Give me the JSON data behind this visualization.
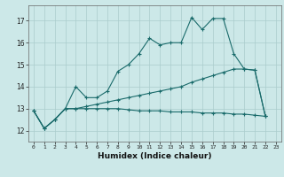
{
  "xlabel": "Humidex (Indice chaleur)",
  "background_color": "#cce8e8",
  "grid_color": "#aacccc",
  "line_color": "#1a6b6b",
  "xlim": [
    -0.5,
    23.5
  ],
  "ylim": [
    11.5,
    17.7
  ],
  "yticks": [
    12,
    13,
    14,
    15,
    16,
    17
  ],
  "xticks": [
    0,
    1,
    2,
    3,
    4,
    5,
    6,
    7,
    8,
    9,
    10,
    11,
    12,
    13,
    14,
    15,
    16,
    17,
    18,
    19,
    20,
    21,
    22,
    23
  ],
  "line1_x": [
    0,
    1,
    2,
    3,
    4,
    5,
    6,
    7,
    8,
    9,
    10,
    11,
    12,
    13,
    14,
    15,
    16,
    17,
    18,
    19,
    20,
    21,
    22
  ],
  "line1_y": [
    12.9,
    12.1,
    12.5,
    13.0,
    14.0,
    13.5,
    13.5,
    13.8,
    14.7,
    15.0,
    15.5,
    16.2,
    15.9,
    16.0,
    16.0,
    17.15,
    16.6,
    17.1,
    17.1,
    15.5,
    14.8,
    14.75,
    12.65
  ],
  "line2_x": [
    0,
    1,
    2,
    3,
    4,
    5,
    6,
    7,
    8,
    9,
    10,
    11,
    12,
    13,
    14,
    15,
    16,
    17,
    18,
    19,
    20,
    21,
    22
  ],
  "line2_y": [
    12.9,
    12.1,
    12.5,
    13.0,
    13.0,
    13.1,
    13.2,
    13.3,
    13.4,
    13.5,
    13.6,
    13.7,
    13.8,
    13.9,
    14.0,
    14.2,
    14.35,
    14.5,
    14.65,
    14.8,
    14.8,
    14.75,
    12.65
  ],
  "line3_x": [
    0,
    1,
    2,
    3,
    4,
    5,
    6,
    7,
    8,
    9,
    10,
    11,
    12,
    13,
    14,
    15,
    16,
    17,
    18,
    19,
    20,
    21,
    22
  ],
  "line3_y": [
    12.9,
    12.1,
    12.5,
    13.0,
    13.0,
    13.0,
    13.0,
    13.0,
    13.0,
    12.95,
    12.9,
    12.9,
    12.9,
    12.85,
    12.85,
    12.85,
    12.8,
    12.8,
    12.8,
    12.75,
    12.75,
    12.7,
    12.65
  ]
}
